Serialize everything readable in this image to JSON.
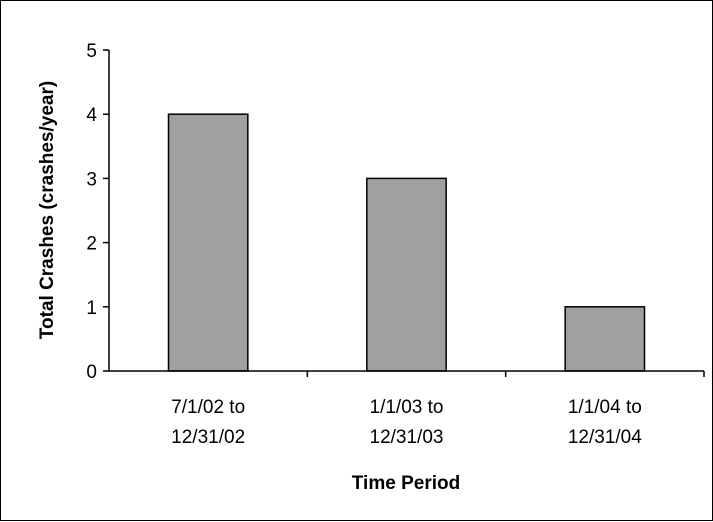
{
  "chart_data": {
    "type": "bar",
    "title": "",
    "categories": [
      [
        "7/1/02 to",
        "12/31/02"
      ],
      [
        "1/1/03 to",
        "12/31/03"
      ],
      [
        "1/1/04 to",
        "12/31/04"
      ]
    ],
    "values": [
      4,
      3,
      1
    ],
    "xlabel": "Time Period",
    "ylabel": "Total Crashes (crashes/year)",
    "ylim": [
      0,
      5
    ],
    "yticks": [
      0,
      1,
      2,
      3,
      4,
      5
    ],
    "grid": false,
    "legend": "none",
    "bar_color": "#a0a0a0",
    "bar_edge_color": "#000000"
  }
}
